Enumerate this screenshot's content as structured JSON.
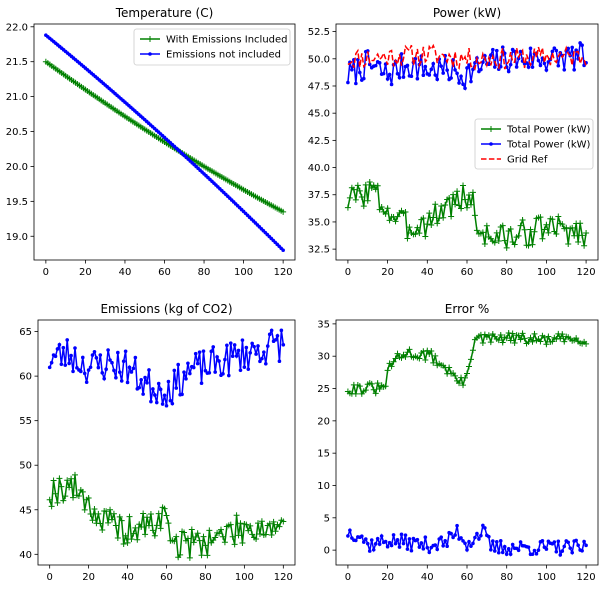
{
  "colors": {
    "green": "#008000",
    "blue": "#0000ff",
    "red": "#ff0000"
  },
  "chart_data": [
    {
      "id": "temp",
      "type": "line",
      "title": "Temperature (C)",
      "xlabel": "",
      "ylabel": "",
      "xlim": [
        -6,
        126
      ],
      "ylim": [
        18.66,
        22.04
      ],
      "xticks": [
        0,
        20,
        40,
        60,
        80,
        100,
        120
      ],
      "yticks": [
        19.0,
        19.5,
        20.0,
        20.5,
        21.0,
        21.5,
        22.0
      ],
      "ytick_decimals": 1,
      "legend": "top-right",
      "series": [
        {
          "name": "With Emissions Included",
          "color_key": "green",
          "marker": "plus",
          "style": "solid",
          "gen": {
            "kind": "curve",
            "n": 121,
            "start": 21.5,
            "end": 19.35,
            "curv": -0.3
          }
        },
        {
          "name": "Emissions not included",
          "color_key": "blue",
          "marker": "dot",
          "style": "solid",
          "gen": {
            "kind": "curve",
            "n": 121,
            "start": 21.88,
            "end": 18.8,
            "curv": 0.3
          }
        }
      ]
    },
    {
      "id": "power",
      "type": "line",
      "title": "Power (kW)",
      "xlabel": "",
      "ylabel": "",
      "xlim": [
        -6,
        126
      ],
      "ylim": [
        31.5,
        53.2
      ],
      "xticks": [
        0,
        20,
        40,
        60,
        80,
        100,
        120
      ],
      "yticks": [
        32.5,
        35.0,
        37.5,
        40.0,
        42.5,
        45.0,
        47.5,
        50.0,
        52.5
      ],
      "ytick_decimals": 1,
      "legend": "center-right",
      "series": [
        {
          "name": "Total Power (kW)",
          "color_key": "green",
          "marker": "plus",
          "style": "solid",
          "gen": {
            "kind": "noisy",
            "n": 121,
            "segments": [
              [
                0,
                37
              ],
              [
                12,
                38
              ],
              [
                20,
                36
              ],
              [
                30,
                34.5
              ],
              [
                40,
                35
              ],
              [
                50,
                36.5
              ],
              [
                62,
                37.5
              ],
              [
                66,
                34
              ],
              [
                80,
                33.5
              ],
              [
                100,
                34.5
              ],
              [
                120,
                34
              ]
            ],
            "amp": 1.3,
            "seed": 3
          }
        },
        {
          "name": "Total Power (kW)",
          "color_key": "blue",
          "marker": "dot",
          "style": "solid",
          "gen": {
            "kind": "noisy",
            "n": 121,
            "segments": [
              [
                0,
                48.5
              ],
              [
                10,
                49.5
              ],
              [
                20,
                48.5
              ],
              [
                30,
                49.5
              ],
              [
                40,
                49
              ],
              [
                50,
                49
              ],
              [
                58,
                48.5
              ],
              [
                70,
                49.5
              ],
              [
                80,
                50
              ],
              [
                100,
                50
              ],
              [
                120,
                50.2
              ]
            ],
            "amp": 1.3,
            "seed": 7
          }
        },
        {
          "name": "Grid Ref",
          "color_key": "red",
          "marker": "none",
          "style": "dashed",
          "gen": {
            "kind": "noisy",
            "n": 121,
            "segments": [
              [
                0,
                50
              ],
              [
                20,
                50.2
              ],
              [
                40,
                50.4
              ],
              [
                60,
                50
              ],
              [
                80,
                50
              ],
              [
                100,
                50.2
              ],
              [
                120,
                50.2
              ]
            ],
            "amp": 1.0,
            "seed": 11
          }
        }
      ]
    },
    {
      "id": "emissions",
      "type": "line",
      "title": "Emissions (kg of CO2)",
      "xlabel": "",
      "ylabel": "",
      "xlim": [
        -6,
        126
      ],
      "ylim": [
        38.8,
        66.3
      ],
      "xticks": [
        0,
        20,
        40,
        60,
        80,
        100,
        120
      ],
      "yticks": [
        40,
        45,
        50,
        55,
        60,
        65
      ],
      "ytick_decimals": 0,
      "legend": "none",
      "series": [
        {
          "name": "",
          "color_key": "green",
          "marker": "plus",
          "style": "solid",
          "gen": {
            "kind": "noisy",
            "n": 121,
            "segments": [
              [
                0,
                47
              ],
              [
                10,
                47.8
              ],
              [
                18,
                46.5
              ],
              [
                25,
                44
              ],
              [
                40,
                42.5
              ],
              [
                55,
                43.5
              ],
              [
                60,
                44.5
              ],
              [
                64,
                41
              ],
              [
                80,
                41.5
              ],
              [
                100,
                43
              ],
              [
                120,
                43.2
              ]
            ],
            "amp": 1.7,
            "seed": 19
          }
        },
        {
          "name": "",
          "color_key": "blue",
          "marker": "dot",
          "style": "solid",
          "gen": {
            "kind": "noisy",
            "n": 121,
            "segments": [
              [
                0,
                62
              ],
              [
                10,
                62.5
              ],
              [
                20,
                61
              ],
              [
                30,
                61.5
              ],
              [
                40,
                61
              ],
              [
                50,
                59
              ],
              [
                60,
                58.5
              ],
              [
                65,
                59
              ],
              [
                70,
                60.5
              ],
              [
                80,
                61
              ],
              [
                100,
                62.5
              ],
              [
                120,
                63.8
              ]
            ],
            "amp": 2.0,
            "seed": 23
          }
        }
      ]
    },
    {
      "id": "error",
      "type": "line",
      "title": "Error %",
      "xlabel": "",
      "ylabel": "",
      "xlim": [
        -6,
        126
      ],
      "ylim": [
        -2.3,
        35.6
      ],
      "xticks": [
        0,
        20,
        40,
        60,
        80,
        100,
        120
      ],
      "yticks": [
        0,
        5,
        10,
        15,
        20,
        25,
        30,
        35
      ],
      "ytick_decimals": 0,
      "legend": "none",
      "series": [
        {
          "name": "",
          "color_key": "green",
          "marker": "plus",
          "style": "solid",
          "gen": {
            "kind": "noisy",
            "n": 121,
            "segments": [
              [
                0,
                25
              ],
              [
                18,
                25
              ],
              [
                22,
                29
              ],
              [
                30,
                30.5
              ],
              [
                42,
                30
              ],
              [
                50,
                28
              ],
              [
                58,
                25.5
              ],
              [
                64,
                32.5
              ],
              [
                80,
                32.8
              ],
              [
                100,
                32.5
              ],
              [
                120,
                32.8
              ]
            ],
            "amp": 0.9,
            "seed": 31
          }
        },
        {
          "name": "",
          "color_key": "blue",
          "marker": "dot",
          "style": "solid",
          "gen": {
            "kind": "noisy",
            "n": 121,
            "segments": [
              [
                0,
                2.8
              ],
              [
                6,
                2.5
              ],
              [
                10,
                0.8
              ],
              [
                20,
                1.5
              ],
              [
                40,
                0.8
              ],
              [
                50,
                1.2
              ],
              [
                55,
                3
              ],
              [
                60,
                1
              ],
              [
                68,
                3
              ],
              [
                72,
                0.4
              ],
              [
                100,
                0.4
              ],
              [
                120,
                0.3
              ]
            ],
            "amp": 1.2,
            "seed": 37
          }
        }
      ]
    }
  ]
}
